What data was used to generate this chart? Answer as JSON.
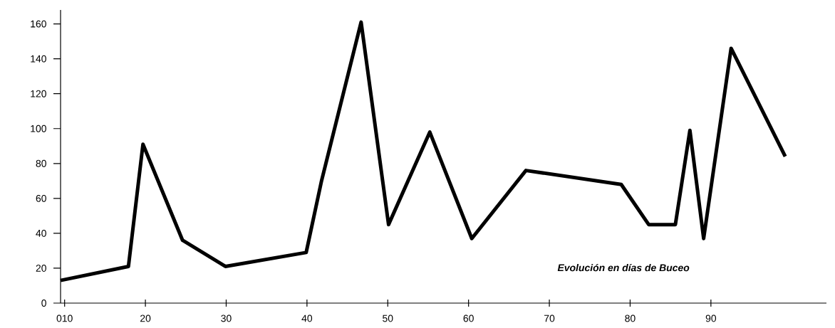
{
  "chart_data": {
    "type": "line",
    "x": [
      9.5,
      17.9,
      19.7,
      24.6,
      29.9,
      39.9,
      41.8,
      46.7,
      50.1,
      55.2,
      60.4,
      67.1,
      78.9,
      82.3,
      85.6,
      87.4,
      89.1,
      92.5,
      99.2
    ],
    "values": [
      13,
      21,
      91,
      36,
      21,
      29,
      70,
      161,
      45,
      98,
      37,
      76,
      68,
      45,
      45,
      99,
      37,
      146,
      84
    ],
    "color": "#000000",
    "xlim": [
      9.5,
      104.3
    ],
    "ylim": [
      0,
      168
    ],
    "xticks": [
      {
        "value": 10,
        "label": "010"
      },
      20,
      30,
      40,
      50,
      60,
      70,
      80,
      90
    ],
    "yticks": [
      0,
      20,
      40,
      60,
      80,
      100,
      120,
      140,
      160
    ],
    "annotations": [
      "Evolución en días de Buceo"
    ]
  }
}
